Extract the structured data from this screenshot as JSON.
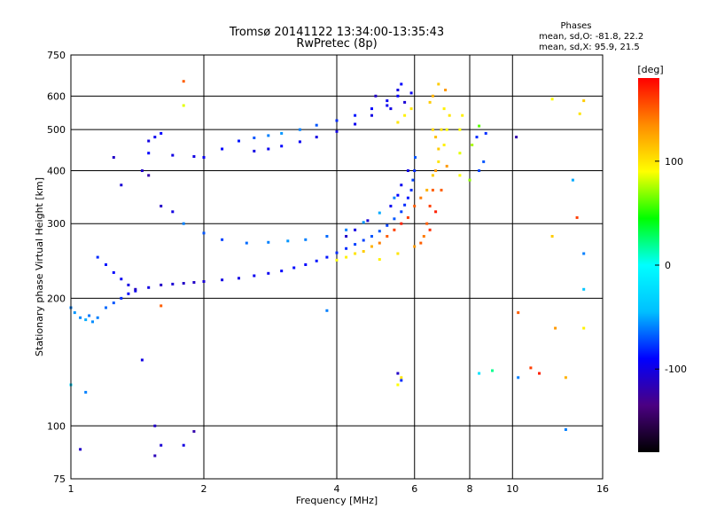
{
  "chart_data": {
    "type": "scatter",
    "title": "Tromsø 20141122 13:34:00-13:35:43",
    "subtitle": "RwPretec (8p)",
    "xlabel": "Frequency [MHz]",
    "ylabel": "Stationary phase Virtual Height [km]",
    "x_scale": "log",
    "y_scale": "log",
    "xlim": [
      1,
      16
    ],
    "ylim": [
      75,
      750
    ],
    "x_ticks": [
      1,
      2,
      4,
      6,
      8,
      10,
      16
    ],
    "y_ticks": [
      75,
      100,
      200,
      300,
      400,
      500,
      600,
      750
    ],
    "grid": true,
    "phase_info": {
      "heading": "Phases",
      "line_o": "mean, sd,O: -81.8, 22.2",
      "line_x": "mean, sd,X:  95.9, 21.5"
    },
    "colorbar": {
      "label": "[deg]",
      "ticks": [
        100,
        0,
        -100
      ],
      "range": [
        -180,
        180
      ],
      "colors": [
        "#000000",
        "#4b0082",
        "#0000ff",
        "#00bfff",
        "#00ffff",
        "#00ff00",
        "#ffff00",
        "#ff8c00",
        "#ff0000"
      ]
    },
    "series": [
      {
        "points": [
          [
            1.0,
            190,
            -60
          ],
          [
            1.02,
            185,
            -55
          ],
          [
            1.05,
            180,
            -58
          ],
          [
            1.08,
            178,
            -50
          ],
          [
            1.1,
            182,
            -62
          ],
          [
            1.12,
            176,
            -57
          ],
          [
            1.15,
            180,
            -60
          ],
          [
            1.2,
            190,
            -65
          ],
          [
            1.25,
            195,
            -70
          ],
          [
            1.3,
            200,
            -80
          ],
          [
            1.35,
            205,
            -90
          ],
          [
            1.4,
            208,
            -95
          ],
          [
            1.5,
            212,
            -100
          ],
          [
            1.6,
            215,
            -110
          ],
          [
            1.7,
            216,
            -105
          ],
          [
            1.8,
            217,
            -110
          ],
          [
            1.9,
            218,
            -110
          ],
          [
            2.0,
            219,
            -105
          ],
          [
            2.2,
            221,
            -100
          ],
          [
            2.4,
            223,
            -100
          ],
          [
            2.6,
            226,
            -95
          ],
          [
            2.8,
            229,
            -95
          ],
          [
            3.0,
            232,
            -90
          ],
          [
            3.2,
            236,
            -88
          ],
          [
            3.4,
            240,
            -90
          ],
          [
            3.6,
            245,
            -85
          ],
          [
            3.8,
            250,
            -85
          ],
          [
            4.0,
            256,
            -80
          ],
          [
            4.2,
            262,
            -80
          ],
          [
            4.4,
            268,
            -75
          ],
          [
            4.6,
            274,
            -75
          ],
          [
            4.8,
            280,
            -70
          ],
          [
            5.0,
            288,
            -70
          ],
          [
            5.2,
            297,
            -75
          ],
          [
            5.4,
            308,
            -70
          ],
          [
            5.6,
            320,
            -75
          ],
          [
            5.7,
            332,
            -80
          ],
          [
            5.8,
            345,
            -85
          ],
          [
            5.9,
            360,
            -80
          ],
          [
            5.95,
            380,
            -75
          ],
          [
            6.0,
            400,
            -80
          ],
          [
            6.02,
            430,
            -70
          ],
          [
            1.5,
            440,
            -90
          ],
          [
            1.7,
            435,
            -100
          ],
          [
            1.9,
            432,
            -100
          ],
          [
            2.0,
            430,
            -95
          ],
          [
            2.2,
            450,
            -90
          ],
          [
            2.4,
            470,
            -85
          ],
          [
            2.6,
            478,
            -70
          ],
          [
            2.8,
            484,
            -60
          ],
          [
            3.0,
            490,
            -55
          ],
          [
            3.3,
            500,
            -60
          ],
          [
            3.6,
            512,
            -70
          ],
          [
            4.0,
            525,
            -80
          ],
          [
            4.4,
            540,
            -85
          ],
          [
            4.8,
            560,
            -90
          ],
          [
            5.2,
            585,
            -95
          ],
          [
            5.5,
            620,
            -100
          ],
          [
            5.6,
            640,
            -90
          ],
          [
            2.6,
            445,
            -100
          ],
          [
            2.8,
            450,
            -95
          ],
          [
            3.0,
            457,
            -90
          ],
          [
            3.3,
            468,
            -95
          ],
          [
            3.6,
            480,
            -100
          ],
          [
            4.0,
            495,
            -100
          ],
          [
            4.4,
            515,
            -95
          ],
          [
            4.8,
            540,
            -100
          ],
          [
            5.2,
            570,
            -95
          ],
          [
            5.5,
            600,
            -90
          ],
          [
            1.8,
            300,
            -60
          ],
          [
            2.0,
            285,
            -70
          ],
          [
            2.2,
            275,
            -75
          ],
          [
            2.5,
            270,
            -65
          ],
          [
            2.8,
            271,
            -60
          ],
          [
            3.1,
            273,
            -55
          ],
          [
            3.4,
            275,
            -60
          ],
          [
            3.8,
            280,
            -65
          ],
          [
            4.2,
            290,
            -60
          ],
          [
            4.6,
            302,
            -55
          ],
          [
            5.0,
            318,
            -50
          ],
          [
            5.4,
            345,
            -60
          ],
          [
            1.15,
            250,
            -80
          ],
          [
            1.2,
            240,
            -85
          ],
          [
            1.25,
            230,
            -90
          ],
          [
            1.3,
            222,
            -95
          ],
          [
            1.35,
            215,
            -100
          ],
          [
            1.4,
            210,
            -110
          ],
          [
            1.5,
            470,
            -100
          ],
          [
            1.55,
            480,
            -95
          ],
          [
            1.6,
            490,
            -90
          ],
          [
            1.45,
            400,
            -110
          ],
          [
            1.5,
            390,
            -120
          ],
          [
            1.6,
            330,
            -110
          ],
          [
            1.7,
            320,
            -100
          ],
          [
            1.3,
            370,
            -105
          ],
          [
            1.25,
            430,
            -110
          ],
          [
            0.99,
            110,
            -20
          ],
          [
            1.0,
            125,
            -30
          ],
          [
            1.05,
            88,
            -110
          ],
          [
            1.08,
            120,
            -60
          ],
          [
            1.45,
            143,
            -100
          ],
          [
            1.55,
            100,
            -110
          ],
          [
            1.6,
            90,
            -105
          ],
          [
            1.55,
            85,
            -115
          ],
          [
            1.9,
            97,
            -120
          ],
          [
            1.8,
            90,
            -100
          ],
          [
            5.5,
            133,
            -110
          ],
          [
            5.6,
            128,
            -80
          ],
          [
            3.8,
            187,
            -60
          ],
          [
            4.9,
            600,
            -110
          ],
          [
            5.3,
            560,
            -100
          ],
          [
            5.7,
            580,
            -105
          ],
          [
            5.9,
            610,
            -95
          ],
          [
            5.8,
            400,
            -100
          ],
          [
            5.6,
            370,
            -95
          ],
          [
            5.5,
            350,
            -90
          ],
          [
            5.3,
            330,
            -95
          ],
          [
            4.7,
            305,
            -105
          ],
          [
            4.4,
            290,
            -100
          ],
          [
            4.2,
            280,
            -110
          ],
          [
            8.3,
            480,
            -80
          ],
          [
            8.6,
            420,
            -70
          ],
          [
            8.4,
            400,
            -75
          ],
          [
            8.7,
            490,
            -80
          ],
          [
            10.2,
            480,
            -120
          ],
          [
            10.3,
            130,
            -60
          ],
          [
            14.5,
            210,
            -40
          ],
          [
            14.5,
            255,
            -60
          ],
          [
            13.7,
            380,
            -50
          ],
          [
            13.2,
            98,
            -60
          ]
        ]
      },
      {
        "points": [
          [
            4.0,
            246,
            90
          ],
          [
            4.2,
            250,
            95
          ],
          [
            4.4,
            255,
            100
          ],
          [
            4.6,
            258,
            110
          ],
          [
            4.8,
            265,
            120
          ],
          [
            5.0,
            270,
            140
          ],
          [
            5.2,
            280,
            150
          ],
          [
            5.4,
            290,
            160
          ],
          [
            5.6,
            300,
            170
          ],
          [
            5.8,
            310,
            160
          ],
          [
            6.0,
            330,
            150
          ],
          [
            6.2,
            345,
            140
          ],
          [
            6.4,
            360,
            120
          ],
          [
            6.6,
            390,
            110
          ],
          [
            6.8,
            420,
            100
          ],
          [
            7.0,
            460,
            95
          ],
          [
            7.1,
            500,
            90
          ],
          [
            7.2,
            540,
            100
          ],
          [
            6.3,
            280,
            140
          ],
          [
            6.4,
            300,
            150
          ],
          [
            6.5,
            330,
            160
          ],
          [
            6.6,
            360,
            150
          ],
          [
            6.7,
            400,
            130
          ],
          [
            6.8,
            450,
            110
          ],
          [
            6.9,
            500,
            100
          ],
          [
            7.0,
            560,
            95
          ],
          [
            7.05,
            620,
            130
          ],
          [
            5.0,
            247,
            95
          ],
          [
            5.5,
            255,
            100
          ],
          [
            6.0,
            265,
            130
          ],
          [
            6.2,
            270,
            150
          ],
          [
            6.5,
            290,
            165
          ],
          [
            6.7,
            320,
            170
          ],
          [
            6.9,
            360,
            150
          ],
          [
            7.1,
            410,
            130
          ],
          [
            5.5,
            520,
            100
          ],
          [
            5.7,
            540,
            95
          ],
          [
            5.9,
            560,
            100
          ],
          [
            6.5,
            580,
            110
          ],
          [
            6.6,
            600,
            120
          ],
          [
            6.8,
            640,
            110
          ],
          [
            6.6,
            500,
            105
          ],
          [
            6.7,
            480,
            115
          ],
          [
            7.6,
            390,
            90
          ],
          [
            7.6,
            440,
            85
          ],
          [
            7.6,
            500,
            90
          ],
          [
            7.7,
            540,
            95
          ],
          [
            8.0,
            380,
            70
          ],
          [
            8.1,
            460,
            75
          ],
          [
            8.4,
            510,
            60
          ],
          [
            5.5,
            125,
            90
          ],
          [
            5.6,
            130,
            100
          ],
          [
            12.3,
            590,
            90
          ],
          [
            14.5,
            585,
            110
          ],
          [
            14.0,
            310,
            160
          ],
          [
            12.3,
            280,
            110
          ],
          [
            12.5,
            170,
            130
          ],
          [
            14.5,
            170,
            95
          ],
          [
            14.2,
            545,
            100
          ],
          [
            1.8,
            570,
            85
          ],
          [
            1.8,
            650,
            150
          ],
          [
            10.3,
            185,
            150
          ],
          [
            11.5,
            133,
            170
          ],
          [
            11.0,
            137,
            160
          ],
          [
            8.4,
            133,
            -20
          ],
          [
            9.0,
            135,
            20
          ],
          [
            1.6,
            192,
            150
          ],
          [
            13.2,
            130,
            120
          ]
        ]
      }
    ]
  }
}
